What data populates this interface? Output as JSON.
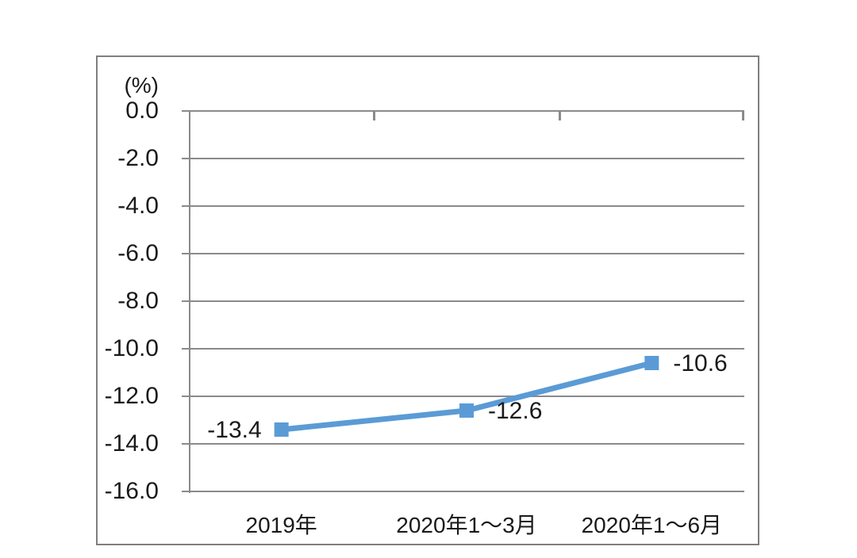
{
  "chart_data": {
    "type": "line",
    "title": "",
    "unit_label": "(%)",
    "categories": [
      "2019年",
      "2020年1～3月",
      "2020年1～6月"
    ],
    "series": [
      {
        "name": "",
        "values": [
          -13.4,
          -12.6,
          -10.6
        ]
      }
    ],
    "data_labels": [
      "-13.4",
      "-12.6",
      "-10.6"
    ],
    "ytick_labels": [
      "0.0",
      "-2.0",
      "-4.0",
      "-6.0",
      "-8.0",
      "-10.0",
      "-12.0",
      "-14.0",
      "-16.0"
    ],
    "ylim": [
      -16,
      0
    ],
    "ytick_step": 2,
    "grid": true,
    "legend": "none",
    "line_color": "#5B9BD5",
    "marker_shape": "square",
    "grid_color": "#8A8A8A",
    "frame_color": "#7F7F7F",
    "text_color": "#1A1A1A"
  }
}
